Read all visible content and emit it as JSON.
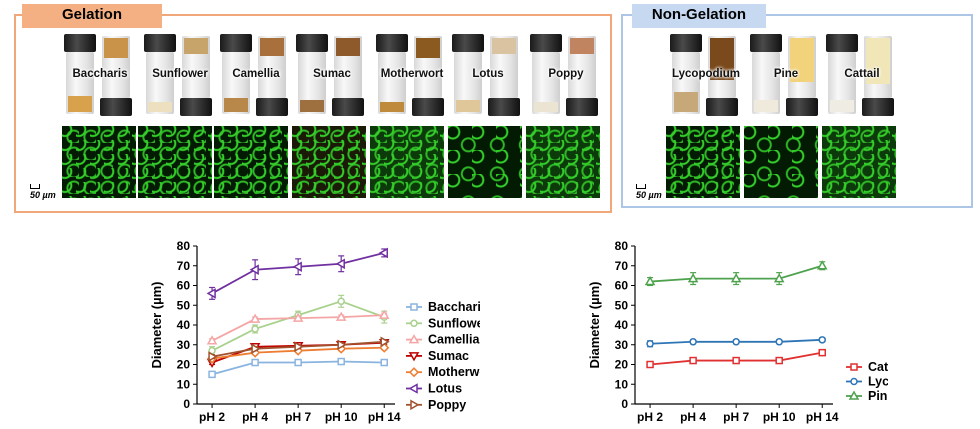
{
  "panels": {
    "gelation_title": "Gelation",
    "nongelation_title": "Non-Gelation",
    "scale_label": "50 µm"
  },
  "gelation_samples": [
    "Baccharis",
    "Sunflower",
    "Camellia",
    "Sumac",
    "Motherwort",
    "Lotus",
    "Poppy"
  ],
  "nongelation_samples": [
    "Lycopodium",
    "Pine",
    "Cattail"
  ],
  "chart_data": [
    {
      "type": "line",
      "title": "",
      "xlabel": "",
      "ylabel": "Diameter (µm)",
      "ylim": [
        0,
        80
      ],
      "yticks": [
        0,
        10,
        20,
        30,
        40,
        50,
        60,
        70,
        80
      ],
      "categories": [
        "pH 2",
        "pH 4",
        "pH 7",
        "pH 10",
        "pH 14"
      ],
      "legend_position": "right",
      "series": [
        {
          "name": "Baccharis",
          "color": "#8ab4e0",
          "marker": "square",
          "values": [
            15,
            21,
            21,
            21.5,
            21
          ],
          "errors": [
            1,
            1,
            1,
            1,
            1
          ]
        },
        {
          "name": "Sunflower",
          "color": "#a9d18e",
          "marker": "circle",
          "values": [
            27,
            38,
            45,
            52,
            44
          ],
          "errors": [
            2,
            2,
            2,
            3,
            3
          ]
        },
        {
          "name": "Camellia",
          "color": "#f4a5a5",
          "marker": "triangle",
          "values": [
            32,
            43,
            43.5,
            44,
            45
          ],
          "errors": [
            1,
            1,
            1,
            1,
            1
          ]
        },
        {
          "name": "Sumac",
          "color": "#c00000",
          "marker": "triangle-down",
          "values": [
            21,
            29,
            29.5,
            30,
            31
          ],
          "errors": [
            1,
            1,
            1,
            1,
            1
          ]
        },
        {
          "name": "Motherwort",
          "color": "#ed7d31",
          "marker": "diamond",
          "values": [
            23,
            26,
            27,
            28,
            28.5
          ],
          "errors": [
            1,
            1,
            1,
            1,
            1
          ]
        },
        {
          "name": "Lotus",
          "color": "#7030a0",
          "marker": "triangle-left",
          "values": [
            56,
            68,
            69.5,
            71,
            76.5
          ],
          "errors": [
            3,
            5,
            4,
            4,
            2
          ]
        },
        {
          "name": "Poppy",
          "color": "#a0522d",
          "marker": "triangle-right",
          "values": [
            24,
            28,
            29,
            30,
            31.5
          ],
          "errors": [
            1,
            1,
            1,
            1,
            1
          ]
        }
      ]
    },
    {
      "type": "line",
      "title": "",
      "xlabel": "",
      "ylabel": "Diameter (µm)",
      "ylim": [
        0,
        80
      ],
      "yticks": [
        0,
        10,
        20,
        30,
        40,
        50,
        60,
        70,
        80
      ],
      "categories": [
        "pH 2",
        "pH 4",
        "pH 7",
        "pH 10",
        "pH 14"
      ],
      "legend_position": "bottom-right",
      "series": [
        {
          "name": "Cattail",
          "color": "#e03030",
          "marker": "square",
          "values": [
            20,
            22,
            22,
            22,
            26
          ],
          "errors": [
            0.5,
            0.5,
            0.5,
            0.5,
            0.5
          ]
        },
        {
          "name": "Lycopodium",
          "color": "#2e75b6",
          "marker": "circle",
          "values": [
            30.5,
            31.5,
            31.5,
            31.5,
            32.5
          ],
          "errors": [
            1.5,
            1,
            1,
            1,
            1
          ]
        },
        {
          "name": "Pine",
          "color": "#4ea24e",
          "marker": "triangle",
          "values": [
            62,
            63.5,
            63.5,
            63.5,
            70
          ],
          "errors": [
            2,
            3,
            3,
            3,
            2
          ]
        }
      ]
    }
  ]
}
